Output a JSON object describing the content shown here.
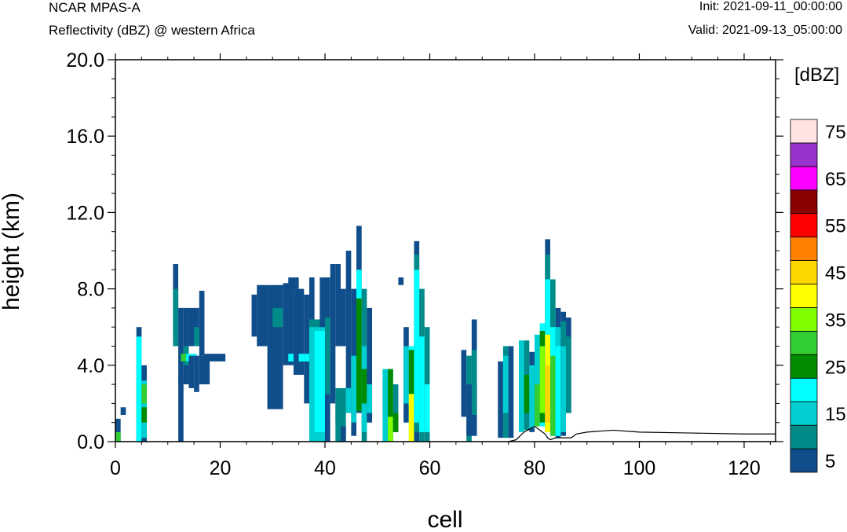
{
  "header": {
    "title": "NCAR MPAS-A",
    "subtitle": "Reflectivity (dBZ) @ western Africa",
    "init": "Init: 2021-09-11_00:00:00",
    "valid": "Valid: 2021-09-13_05:00:00"
  },
  "chart_data": {
    "type": "heatmap",
    "xlabel": "cell",
    "ylabel": "height (km)",
    "xlim": [
      0,
      126
    ],
    "ylim": [
      0,
      20
    ],
    "x_ticks": [
      "0",
      "20",
      "40",
      "60",
      "80",
      "100",
      "120"
    ],
    "y_ticks": [
      "0.0",
      "4.0",
      "8.0",
      "12.0",
      "16.0",
      "20.0"
    ],
    "colorbar": {
      "unit_label": "[dBZ]",
      "levels": [
        5,
        10,
        15,
        20,
        25,
        30,
        35,
        40,
        45,
        50,
        55,
        60,
        65,
        70,
        75
      ],
      "tick_labels": [
        "5",
        "15",
        "25",
        "35",
        "45",
        "55",
        "65",
        "75"
      ],
      "colors": [
        "#104e8b",
        "#008b8b",
        "#00ced1",
        "#00ffff",
        "#008b00",
        "#32cd32",
        "#7fff00",
        "#ffff00",
        "#ffd700",
        "#ff7f00",
        "#ff0000",
        "#8b0000",
        "#ff00ff",
        "#9a32cd",
        "#ffe4e1"
      ]
    },
    "reflectivity_cells": [
      {
        "x": [
          0,
          1
        ],
        "y": [
          0,
          1.2
        ],
        "dbz": 5
      },
      {
        "x": [
          0,
          1
        ],
        "y": [
          0,
          0.5
        ],
        "dbz": 30
      },
      {
        "x": [
          1,
          2
        ],
        "y": [
          1.4,
          1.8
        ],
        "dbz": 5
      },
      {
        "x": [
          4,
          5
        ],
        "y": [
          0,
          6
        ],
        "dbz": 5
      },
      {
        "x": [
          4,
          5
        ],
        "y": [
          0,
          5.5
        ],
        "dbz": 20
      },
      {
        "x": [
          5,
          6
        ],
        "y": [
          0,
          4
        ],
        "dbz": 5
      },
      {
        "x": [
          5,
          6
        ],
        "y": [
          0.2,
          3.2
        ],
        "dbz": 15
      },
      {
        "x": [
          5,
          6
        ],
        "y": [
          2,
          3
        ],
        "dbz": 30
      },
      {
        "x": [
          5,
          6
        ],
        "y": [
          1,
          1.8
        ],
        "dbz": 25
      },
      {
        "x": [
          11,
          12
        ],
        "y": [
          5.5,
          9.3
        ],
        "dbz": 5
      },
      {
        "x": [
          11,
          12
        ],
        "y": [
          5,
          8
        ],
        "dbz": 10
      },
      {
        "x": [
          12,
          13
        ],
        "y": [
          3,
          7
        ],
        "dbz": 5
      },
      {
        "x": [
          12,
          13
        ],
        "y": [
          0,
          3.5
        ],
        "dbz": 5
      },
      {
        "x": [
          13,
          14
        ],
        "y": [
          3,
          7
        ],
        "dbz": 5
      },
      {
        "x": [
          13,
          14
        ],
        "y": [
          4,
          5
        ],
        "dbz": 10
      },
      {
        "x": [
          12.5,
          13.5
        ],
        "y": [
          4.2,
          4.6
        ],
        "dbz": 30
      },
      {
        "x": [
          13.5,
          15.5
        ],
        "y": [
          4.2,
          4.6
        ],
        "dbz": 20
      },
      {
        "x": [
          14,
          16
        ],
        "y": [
          5,
          7
        ],
        "dbz": 5
      },
      {
        "x": [
          14,
          15
        ],
        "y": [
          2.8,
          4.5
        ],
        "dbz": 5
      },
      {
        "x": [
          15,
          16
        ],
        "y": [
          5,
          6
        ],
        "dbz": 10
      },
      {
        "x": [
          15,
          16
        ],
        "y": [
          2.6,
          4.5
        ],
        "dbz": 5
      },
      {
        "x": [
          16,
          17
        ],
        "y": [
          4.5,
          7.9
        ],
        "dbz": 5
      },
      {
        "x": [
          16,
          18
        ],
        "y": [
          3,
          4.5
        ],
        "dbz": 5
      },
      {
        "x": [
          17,
          20
        ],
        "y": [
          4.2,
          4.6
        ],
        "dbz": 5
      },
      {
        "x": [
          20,
          21
        ],
        "y": [
          4.2,
          4.6
        ],
        "dbz": 5
      },
      {
        "x": [
          26,
          27
        ],
        "y": [
          5.5,
          7.7
        ],
        "dbz": 5
      },
      {
        "x": [
          27,
          29
        ],
        "y": [
          5,
          8.2
        ],
        "dbz": 5
      },
      {
        "x": [
          29,
          32
        ],
        "y": [
          1.7,
          8.2
        ],
        "dbz": 5
      },
      {
        "x": [
          32,
          34
        ],
        "y": [
          4,
          8.3
        ],
        "dbz": 5
      },
      {
        "x": [
          33,
          35
        ],
        "y": [
          8,
          8.6
        ],
        "dbz": 5
      },
      {
        "x": [
          30,
          32
        ],
        "y": [
          6,
          7
        ],
        "dbz": 10
      },
      {
        "x": [
          33,
          35
        ],
        "y": [
          4.2,
          4.6
        ],
        "dbz": 20
      },
      {
        "x": [
          34,
          36
        ],
        "y": [
          3.5,
          8
        ],
        "dbz": 5
      },
      {
        "x": [
          35,
          36
        ],
        "y": [
          4.2,
          4.6
        ],
        "dbz": 20
      },
      {
        "x": [
          36,
          37
        ],
        "y": [
          2,
          7.7
        ],
        "dbz": 5
      },
      {
        "x": [
          36,
          37
        ],
        "y": [
          4.2,
          4.6
        ],
        "dbz": 20
      },
      {
        "x": [
          37,
          38
        ],
        "y": [
          1.6,
          8.6
        ],
        "dbz": 5
      },
      {
        "x": [
          37,
          40
        ],
        "y": [
          0,
          6.4
        ],
        "dbz": 10
      },
      {
        "x": [
          37,
          40
        ],
        "y": [
          0,
          6
        ],
        "dbz": 15
      },
      {
        "x": [
          38,
          40
        ],
        "y": [
          0.5,
          5.8
        ],
        "dbz": 20
      },
      {
        "x": [
          39,
          41
        ],
        "y": [
          6,
          8.6
        ],
        "dbz": 5
      },
      {
        "x": [
          40,
          41
        ],
        "y": [
          2.5,
          6.5
        ],
        "dbz": 10
      },
      {
        "x": [
          40,
          41
        ],
        "y": [
          0,
          2.5
        ],
        "dbz": 5
      },
      {
        "x": [
          41,
          42
        ],
        "y": [
          2,
          9.3
        ],
        "dbz": 5
      },
      {
        "x": [
          42,
          43
        ],
        "y": [
          5,
          9.3
        ],
        "dbz": 5
      },
      {
        "x": [
          42,
          43
        ],
        "y": [
          1,
          2
        ],
        "dbz": 5
      },
      {
        "x": [
          42,
          44
        ],
        "y": [
          0,
          2.8
        ],
        "dbz": 10
      },
      {
        "x": [
          43,
          44
        ],
        "y": [
          5,
          8
        ],
        "dbz": 5
      },
      {
        "x": [
          43,
          44
        ],
        "y": [
          0,
          0.8
        ],
        "dbz": 5
      },
      {
        "x": [
          44,
          45
        ],
        "y": [
          1.5,
          10
        ],
        "dbz": 5
      },
      {
        "x": [
          44,
          45
        ],
        "y": [
          1.5,
          2.8
        ],
        "dbz": 15
      },
      {
        "x": [
          45,
          46
        ],
        "y": [
          0.3,
          8
        ],
        "dbz": 5
      },
      {
        "x": [
          45,
          46
        ],
        "y": [
          1,
          4.5
        ],
        "dbz": 15
      },
      {
        "x": [
          46,
          47
        ],
        "y": [
          1.5,
          11.3
        ],
        "dbz": 5
      },
      {
        "x": [
          46,
          47
        ],
        "y": [
          3,
          9
        ],
        "dbz": 20
      },
      {
        "x": [
          46,
          47
        ],
        "y": [
          1.6,
          7.5
        ],
        "dbz": 25
      },
      {
        "x": [
          47,
          48
        ],
        "y": [
          0,
          8
        ],
        "dbz": 10
      },
      {
        "x": [
          47,
          48
        ],
        "y": [
          0.5,
          5
        ],
        "dbz": 15
      },
      {
        "x": [
          47,
          48
        ],
        "y": [
          2,
          3.8
        ],
        "dbz": 25
      },
      {
        "x": [
          48,
          49
        ],
        "y": [
          1,
          7
        ],
        "dbz": 5
      },
      {
        "x": [
          48,
          49
        ],
        "y": [
          1.5,
          3
        ],
        "dbz": 15
      },
      {
        "x": [
          51,
          52
        ],
        "y": [
          1.5,
          3.2
        ],
        "dbz": 5
      },
      {
        "x": [
          51,
          53
        ],
        "y": [
          0,
          3.8
        ],
        "dbz": 15
      },
      {
        "x": [
          52,
          53
        ],
        "y": [
          0,
          3.8
        ],
        "dbz": 25
      },
      {
        "x": [
          52,
          53
        ],
        "y": [
          0,
          1.3
        ],
        "dbz": 35
      },
      {
        "x": [
          53,
          54
        ],
        "y": [
          0.5,
          3
        ],
        "dbz": 10
      },
      {
        "x": [
          53,
          54
        ],
        "y": [
          0.5,
          1.5
        ],
        "dbz": 25
      },
      {
        "x": [
          54,
          55
        ],
        "y": [
          8.2,
          8.6
        ],
        "dbz": 5
      },
      {
        "x": [
          55,
          56
        ],
        "y": [
          1,
          6
        ],
        "dbz": 5
      },
      {
        "x": [
          55,
          56
        ],
        "y": [
          2,
          5
        ],
        "dbz": 15
      },
      {
        "x": [
          56,
          57
        ],
        "y": [
          0,
          5
        ],
        "dbz": 20
      },
      {
        "x": [
          56,
          57
        ],
        "y": [
          0,
          2.5
        ],
        "dbz": 40
      },
      {
        "x": [
          56,
          57
        ],
        "y": [
          2.5,
          4.8
        ],
        "dbz": 25
      },
      {
        "x": [
          57,
          58
        ],
        "y": [
          0,
          10.5
        ],
        "dbz": 5
      },
      {
        "x": [
          57,
          58
        ],
        "y": [
          0.5,
          9.8
        ],
        "dbz": 10
      },
      {
        "x": [
          57,
          58
        ],
        "y": [
          1,
          9
        ],
        "dbz": 20
      },
      {
        "x": [
          58,
          59
        ],
        "y": [
          0,
          8
        ],
        "dbz": 10
      },
      {
        "x": [
          58,
          59
        ],
        "y": [
          0.5,
          5.5
        ],
        "dbz": 20
      },
      {
        "x": [
          59,
          60
        ],
        "y": [
          0,
          6
        ],
        "dbz": 10
      },
      {
        "x": [
          59,
          60
        ],
        "y": [
          0.5,
          3
        ],
        "dbz": 20
      },
      {
        "x": [
          66,
          67
        ],
        "y": [
          1.3,
          4.8
        ],
        "dbz": 5
      },
      {
        "x": [
          67,
          68
        ],
        "y": [
          0,
          4.5
        ],
        "dbz": 10
      },
      {
        "x": [
          67,
          69
        ],
        "y": [
          0.3,
          3
        ],
        "dbz": 5
      },
      {
        "x": [
          68,
          69
        ],
        "y": [
          1,
          6.4
        ],
        "dbz": 5
      },
      {
        "x": [
          68,
          69
        ],
        "y": [
          1.4,
          4.8
        ],
        "dbz": 10
      },
      {
        "x": [
          73,
          74
        ],
        "y": [
          0.2,
          4.2
        ],
        "dbz": 5
      },
      {
        "x": [
          74,
          75
        ],
        "y": [
          0.2,
          5
        ],
        "dbz": 10
      },
      {
        "x": [
          74,
          75
        ],
        "y": [
          1.5,
          4.5
        ],
        "dbz": 15
      },
      {
        "x": [
          75,
          76
        ],
        "y": [
          0.2,
          5
        ],
        "dbz": 5
      },
      {
        "x": [
          77,
          78
        ],
        "y": [
          0.5,
          5.3
        ],
        "dbz": 15
      },
      {
        "x": [
          78,
          79
        ],
        "y": [
          0.6,
          5.3
        ],
        "dbz": 10
      },
      {
        "x": [
          78,
          79
        ],
        "y": [
          1.5,
          3.5
        ],
        "dbz": 25
      },
      {
        "x": [
          79,
          80
        ],
        "y": [
          0.5,
          4.7
        ],
        "dbz": 5
      },
      {
        "x": [
          79,
          80
        ],
        "y": [
          0.7,
          4
        ],
        "dbz": 15
      },
      {
        "x": [
          80,
          81
        ],
        "y": [
          0.8,
          5.6
        ],
        "dbz": 15
      },
      {
        "x": [
          80,
          81
        ],
        "y": [
          0.8,
          3
        ],
        "dbz": 30
      },
      {
        "x": [
          81,
          82
        ],
        "y": [
          0.8,
          6.2
        ],
        "dbz": 20
      },
      {
        "x": [
          81,
          82
        ],
        "y": [
          1,
          5.8
        ],
        "dbz": 25
      },
      {
        "x": [
          81,
          82
        ],
        "y": [
          1.5,
          5
        ],
        "dbz": 35
      },
      {
        "x": [
          82,
          83
        ],
        "y": [
          0.5,
          10.6
        ],
        "dbz": 5
      },
      {
        "x": [
          82,
          83
        ],
        "y": [
          0.5,
          9.8
        ],
        "dbz": 10
      },
      {
        "x": [
          82,
          83
        ],
        "y": [
          0.5,
          8.5
        ],
        "dbz": 20
      },
      {
        "x": [
          82,
          83
        ],
        "y": [
          0.5,
          5.6
        ],
        "dbz": 40
      },
      {
        "x": [
          82,
          83
        ],
        "y": [
          1,
          4
        ],
        "dbz": 45
      },
      {
        "x": [
          83,
          84
        ],
        "y": [
          0.3,
          8.5
        ],
        "dbz": 10
      },
      {
        "x": [
          83,
          84
        ],
        "y": [
          0.3,
          6
        ],
        "dbz": 20
      },
      {
        "x": [
          83,
          84
        ],
        "y": [
          0.3,
          4.5
        ],
        "dbz": 30
      },
      {
        "x": [
          84,
          85
        ],
        "y": [
          0.2,
          7
        ],
        "dbz": 5
      },
      {
        "x": [
          84,
          85
        ],
        "y": [
          0.3,
          6
        ],
        "dbz": 15
      },
      {
        "x": [
          84,
          85
        ],
        "y": [
          0.3,
          5
        ],
        "dbz": 20
      },
      {
        "x": [
          85,
          86
        ],
        "y": [
          0.3,
          6.8
        ],
        "dbz": 5
      },
      {
        "x": [
          85,
          86
        ],
        "y": [
          0.5,
          6.3
        ],
        "dbz": 10
      },
      {
        "x": [
          85,
          86
        ],
        "y": [
          0.5,
          5
        ],
        "dbz": 15
      },
      {
        "x": [
          86,
          87
        ],
        "y": [
          1.5,
          6.5
        ],
        "dbz": 5
      },
      {
        "x": [
          86,
          87
        ],
        "y": [
          1.5,
          5.5
        ],
        "dbz": 10
      }
    ],
    "terrain": [
      [
        75,
        0
      ],
      [
        76.5,
        0.1
      ],
      [
        78,
        0.5
      ],
      [
        80,
        0.8
      ],
      [
        81,
        0.6
      ],
      [
        82,
        0.4
      ],
      [
        82.5,
        0.2
      ],
      [
        83,
        0.1
      ],
      [
        84,
        0.2
      ],
      [
        85,
        0.2
      ],
      [
        86,
        0.2
      ],
      [
        87,
        0.2
      ],
      [
        88,
        0.4
      ],
      [
        90,
        0.5
      ],
      [
        95,
        0.6
      ],
      [
        100,
        0.5
      ],
      [
        110,
        0.45
      ],
      [
        120,
        0.4
      ],
      [
        126,
        0.4
      ]
    ]
  }
}
